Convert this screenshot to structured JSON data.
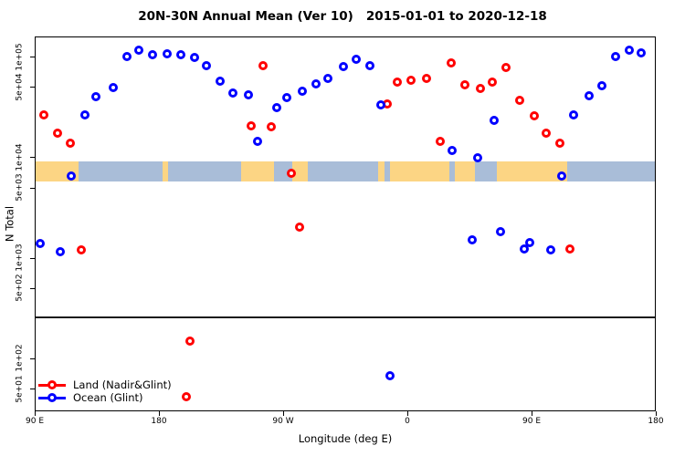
{
  "title": "20N-30N Annual Mean (Ver 10)   2015-01-01 to 2020-12-18",
  "legend": {
    "items": [
      {
        "label": "Land (Nadir&Glint)",
        "color": "#ff0000"
      },
      {
        "label": "Ocean (Glint)",
        "color": "#0000ff"
      }
    ]
  },
  "chart_data": {
    "type": "scatter",
    "title": "20N-30N Annual Mean (Ver 10)   2015-01-01 to 2020-12-18",
    "xlabel": "Longitude (deg E)",
    "ylabel": "N Total",
    "x_axis": {
      "note": "axis runs eastward from 90E, wrapping through 180, 90W, 0, back to 180; positions stored as continuous degrees 90-540",
      "range_deg": [
        90,
        540
      ],
      "ticks": [
        {
          "deg": 90,
          "label": "90 E"
        },
        {
          "deg": 180,
          "label": "180"
        },
        {
          "deg": 270,
          "label": "90 W"
        },
        {
          "deg": 360,
          "label": "0"
        },
        {
          "deg": 450,
          "label": "90 E"
        },
        {
          "deg": 540,
          "label": "180"
        }
      ]
    },
    "y_axis": {
      "scale": "log",
      "ticks": [
        {
          "value": 100000,
          "label": "1e+05"
        },
        {
          "value": 50000,
          "label": "5e+04"
        },
        {
          "value": 10000,
          "label": "1e+04"
        },
        {
          "value": 5000,
          "label": "5e+03"
        },
        {
          "value": 1000,
          "label": "1e+03"
        },
        {
          "value": 500,
          "label": "5e+02"
        },
        {
          "value": 100,
          "label": "1e+02"
        },
        {
          "value": 50,
          "label": "5e+01"
        }
      ]
    },
    "reference_line_value": 260,
    "map_band": {
      "value_top": 9300,
      "value_bottom": 5800,
      "ocean_color": "#a9bdd8",
      "land_color": "#fcd584",
      "segments": [
        {
          "from": 90,
          "to": 121,
          "type": "land"
        },
        {
          "from": 121,
          "to": 182,
          "type": "ocean"
        },
        {
          "from": 182,
          "to": 186,
          "type": "land"
        },
        {
          "from": 186,
          "to": 239,
          "type": "ocean"
        },
        {
          "from": 239,
          "to": 263,
          "type": "land"
        },
        {
          "from": 263,
          "to": 276,
          "type": "ocean"
        },
        {
          "from": 276,
          "to": 287,
          "type": "land"
        },
        {
          "from": 287,
          "to": 338,
          "type": "ocean"
        },
        {
          "from": 338,
          "to": 343,
          "type": "land"
        },
        {
          "from": 343,
          "to": 347,
          "type": "ocean"
        },
        {
          "from": 347,
          "to": 390,
          "type": "land"
        },
        {
          "from": 390,
          "to": 394,
          "type": "ocean"
        },
        {
          "from": 394,
          "to": 408,
          "type": "land"
        },
        {
          "from": 408,
          "to": 424,
          "type": "ocean"
        },
        {
          "from": 424,
          "to": 475,
          "type": "land"
        },
        {
          "from": 475,
          "to": 540,
          "type": "ocean"
        }
      ]
    },
    "series": [
      {
        "name": "Land (Nadir&Glint)",
        "color": "#ff0000",
        "marker": "open-circle",
        "points": [
          [
            96,
            27000
          ],
          [
            106,
            17700
          ],
          [
            115,
            14100
          ],
          [
            123,
            1220
          ],
          [
            199,
            42
          ],
          [
            202,
            152
          ],
          [
            246,
            20900
          ],
          [
            255,
            83000
          ],
          [
            261,
            20500
          ],
          [
            275,
            7050
          ],
          [
            281,
            2050
          ],
          [
            345,
            34500
          ],
          [
            352,
            57000
          ],
          [
            362,
            59300
          ],
          [
            373,
            61900
          ],
          [
            383,
            14700
          ],
          [
            391,
            88200
          ],
          [
            401,
            53400
          ],
          [
            412,
            49200
          ],
          [
            421,
            57000
          ],
          [
            431,
            79500
          ],
          [
            441,
            37400
          ],
          [
            451,
            26300
          ],
          [
            460,
            17700
          ],
          [
            470,
            14100
          ],
          [
            477,
            1250
          ]
        ]
      },
      {
        "name": "Ocean (Glint)",
        "color": "#0000ff",
        "marker": "open-circle",
        "points": [
          [
            93,
            1420
          ],
          [
            108,
            1180
          ],
          [
            116,
            6620
          ],
          [
            126,
            27000
          ],
          [
            134,
            40800
          ],
          [
            146,
            50200
          ],
          [
            156,
            102000
          ],
          [
            165,
            118000
          ],
          [
            175,
            106000
          ],
          [
            185,
            109000
          ],
          [
            195,
            106000
          ],
          [
            205,
            100000
          ],
          [
            214,
            82900
          ],
          [
            224,
            58100
          ],
          [
            233,
            44300
          ],
          [
            244,
            42500
          ],
          [
            251,
            14700
          ],
          [
            265,
            31600
          ],
          [
            272,
            39900
          ],
          [
            283,
            46100
          ],
          [
            293,
            54500
          ],
          [
            302,
            61900
          ],
          [
            313,
            81200
          ],
          [
            322,
            95900
          ],
          [
            332,
            82900
          ],
          [
            340,
            33700
          ],
          [
            347,
            69
          ],
          [
            392,
            11900
          ],
          [
            406,
            1550
          ],
          [
            410,
            10100
          ],
          [
            422,
            23700
          ],
          [
            427,
            1860
          ],
          [
            444,
            1250
          ],
          [
            448,
            1440
          ],
          [
            463,
            1220
          ],
          [
            471,
            6620
          ],
          [
            480,
            27000
          ],
          [
            491,
            41700
          ],
          [
            500,
            52300
          ],
          [
            510,
            102000
          ],
          [
            520,
            118000
          ],
          [
            529,
            112000
          ]
        ]
      }
    ]
  }
}
